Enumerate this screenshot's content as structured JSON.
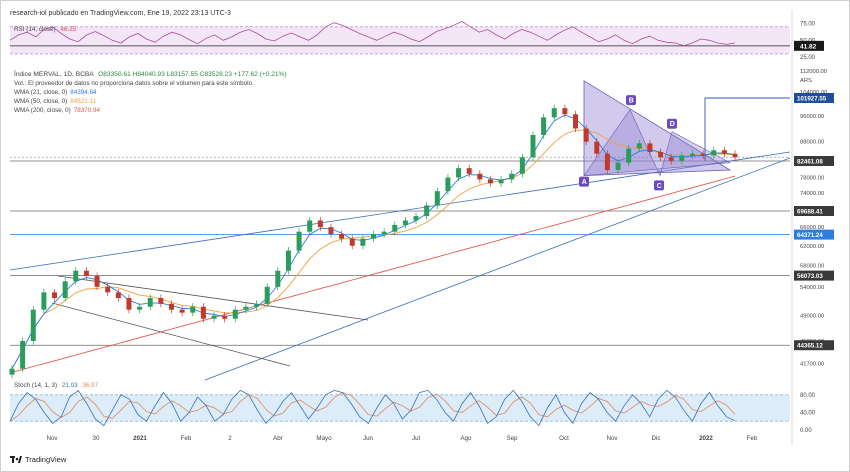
{
  "header": {
    "publisher": "research-iol publicado en TradingView.com, Ene 19, 2022 23:13 UTC-3"
  },
  "footer": {
    "brand": "TradingView"
  },
  "rsi": {
    "label": "RSI (14, close)",
    "value": "46.25",
    "value_color": "#e5484d",
    "current_label": "41.82",
    "ticks": [
      "75.00",
      "50.00",
      "25.00"
    ],
    "band_upper": 70,
    "band_lower": 30,
    "series": [
      50,
      58,
      62,
      55,
      66,
      70,
      60,
      52,
      48,
      58,
      63,
      57,
      50,
      46,
      55,
      60,
      52,
      47,
      56,
      62,
      58,
      51,
      45,
      53,
      58,
      50,
      55,
      62,
      66,
      60,
      52,
      49,
      56,
      61,
      55,
      50,
      58,
      70,
      76,
      72,
      66,
      60,
      55,
      50,
      56,
      62,
      58,
      52,
      48,
      55,
      63,
      67,
      72,
      78,
      70,
      62,
      66,
      58,
      52,
      60,
      66,
      62,
      56,
      50,
      58,
      65,
      70,
      62,
      55,
      48,
      52,
      58,
      50,
      45,
      52,
      56,
      50,
      47,
      46,
      42,
      46,
      52,
      50,
      46,
      44,
      46
    ]
  },
  "price": {
    "title": "Índice MERVAL, 1D, BCBA",
    "ohlc": "O83350.61  H84040.93  L83157.55  C83528.23  +177.62 (+0.21%)",
    "volume_note": "Vol.: El proveedor de datos no proporciona datos sobre el volumen para este símbolo.",
    "wma": [
      {
        "label": "WMA (21, close, 0)",
        "value": "84394.64",
        "color": "#2b7de0"
      },
      {
        "label": "WMA (50, close, 0)",
        "value": "84521.11",
        "color": "#f0a040"
      },
      {
        "label": "WMA (200, close, 0)",
        "value": "78370.94",
        "color": "#e05a4a"
      }
    ],
    "currency": "ARS",
    "y_ticks": [
      "104000.00",
      "96000.00",
      "88000.00",
      "78000.00",
      "74000.00",
      "66000.00",
      "62000.00",
      "58000.00",
      "54000.00",
      "49000.00",
      "45000.00",
      "41700.00"
    ],
    "top_tick": "112000.00",
    "price_labels": [
      {
        "text": "101927.55",
        "value": 101927.55,
        "bg": "#1f4e9c",
        "fg": "#ffffff"
      },
      {
        "text": "82461.08",
        "value": 82461.08,
        "bg": "#3a3a3a",
        "fg": "#ffffff"
      },
      {
        "text": "69688.41",
        "value": 69688.41,
        "bg": "#3a3a3a",
        "fg": "#ffffff"
      },
      {
        "text": "64371.24",
        "value": 64371.24,
        "bg": "#2b7de0",
        "fg": "#ffffff"
      },
      {
        "text": "56073.03",
        "value": 56073.03,
        "bg": "#3a3a3a",
        "fg": "#ffffff"
      },
      {
        "text": "44365.12",
        "value": 44365.12,
        "bg": "#3a3a3a",
        "fg": "#ffffff"
      }
    ],
    "pattern_points": [
      "A",
      "B",
      "C",
      "D"
    ]
  },
  "stoch": {
    "label": "Stoch (14, 1, 3)",
    "k_value": "21.03",
    "d_value": "36.97",
    "ticks": [
      "80.00",
      "40.00",
      "0.00"
    ],
    "series": [
      20,
      60,
      85,
      70,
      40,
      15,
      30,
      75,
      90,
      60,
      25,
      10,
      45,
      80,
      70,
      35,
      20,
      55,
      85,
      60,
      20,
      40,
      75,
      55,
      20,
      35,
      70,
      90,
      80,
      45,
      15,
      35,
      65,
      85,
      55,
      25,
      50,
      80,
      90,
      85,
      60,
      30,
      15,
      50,
      80,
      60,
      25,
      45,
      85,
      90,
      70,
      40,
      20,
      60,
      85,
      55,
      15,
      30,
      70,
      90,
      65,
      30,
      10,
      50,
      80,
      40,
      15,
      60,
      85,
      70,
      40,
      20,
      55,
      80,
      60,
      30,
      70,
      90,
      75,
      45,
      20,
      60,
      85,
      55,
      30,
      21
    ]
  },
  "x_axis": {
    "labels": [
      "Nov",
      "30",
      "2021",
      "Feb",
      "2",
      "Abr",
      "Mayo",
      "Jun",
      "Jul",
      "Ago",
      "Sep",
      "Oct",
      "Nov",
      "Dic",
      "2022",
      "Feb"
    ]
  },
  "chart_data": {
    "type": "candlestick",
    "title": "Índice MERVAL, 1D, BCBA",
    "ylabel": "ARS",
    "x_labels": [
      "Nov",
      "30",
      "2021",
      "Feb",
      "2",
      "Abr",
      "Mayo",
      "Jun",
      "Jul",
      "Ago",
      "Sep",
      "Oct",
      "Nov",
      "Dic",
      "2022",
      "Feb"
    ],
    "close_approx": [
      41000,
      45000,
      50000,
      53000,
      52000,
      55000,
      57000,
      56000,
      54000,
      53000,
      52000,
      50000,
      50500,
      52000,
      51000,
      50000,
      49500,
      50500,
      48500,
      49000,
      48500,
      50000,
      50500,
      51000,
      54000,
      57000,
      61000,
      65000,
      67500,
      66000,
      64500,
      63500,
      62000,
      63500,
      64500,
      65000,
      66500,
      67500,
      68500,
      71000,
      74500,
      78000,
      80500,
      79000,
      77500,
      76500,
      77500,
      79000,
      83500,
      90000,
      95500,
      98500,
      96500,
      92000,
      88000,
      84500,
      80000,
      82000,
      86000,
      87500,
      85000,
      83500,
      82500,
      84000,
      84500,
      84000,
      85500,
      84500,
      83500
    ],
    "ylim": [
      40000,
      112000
    ],
    "current_close": 83528.23,
    "horizontal_levels": [
      101927.55,
      82461.08,
      69688.41,
      64371.24,
      56073.03,
      44365.12
    ],
    "moving_averages": [
      {
        "name": "WMA (21, close, 0)",
        "last": 84394.64
      },
      {
        "name": "WMA (50, close, 0)",
        "last": 84521.11
      },
      {
        "name": "WMA (200, close, 0)",
        "last": 78370.94
      }
    ],
    "indicators": [
      {
        "name": "RSI (14, close)",
        "last": 46.25,
        "ticks": [
          75,
          50,
          25
        ]
      },
      {
        "name": "Stoch (14, 1, 3)",
        "k": 21.03,
        "d": 36.97,
        "ticks": [
          80,
          40,
          0
        ]
      }
    ]
  }
}
